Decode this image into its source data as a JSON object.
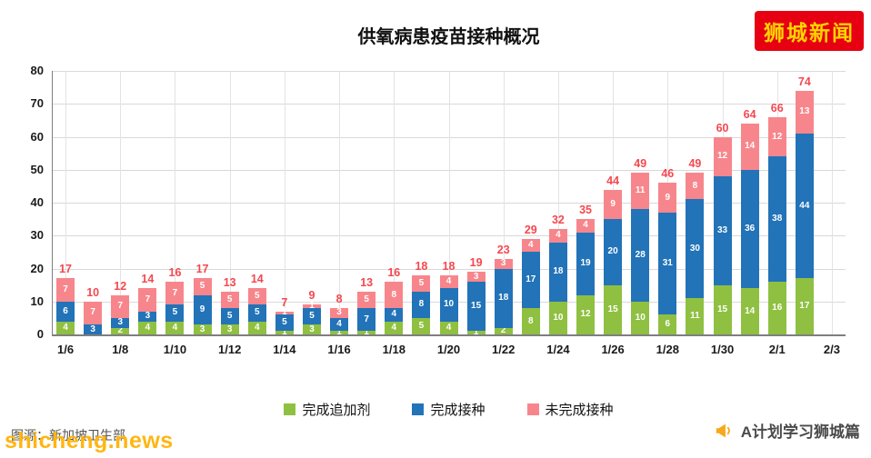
{
  "page": {
    "logo_text": "狮城新闻",
    "watermark_text": "shicheng.news",
    "source_caption": "图源：新加坡卫生部",
    "credit_text": "A计划学习狮城篇"
  },
  "colors": {
    "booster_green": "#8fc041",
    "fully_vaccinated_blue": "#2273b8",
    "not_fully_vaccinated_pink": "#f7868c",
    "total_label_red": "#f4484f",
    "gridline": "#d9d9d9",
    "gridline_vertical": "#e3e3e3",
    "axis": "#7f7f7f",
    "logo_bg_red": "#e60012",
    "logo_text_yellow": "#ffd500",
    "watermark_yellow": "#ffb612",
    "credit_icon_orange": "#f7a81b"
  },
  "chart_data": {
    "type": "bar",
    "stacked": true,
    "title": "供氧病患疫苗接种概况",
    "xlabel": "",
    "ylabel": "",
    "ylim": [
      0,
      80
    ],
    "yticks": [
      0,
      10,
      20,
      30,
      40,
      50,
      60,
      70,
      80
    ],
    "grid": true,
    "legend_position": "bottom",
    "categories": [
      "1/6",
      "1/7",
      "1/8",
      "1/9",
      "1/10",
      "1/11",
      "1/12",
      "1/13",
      "1/14",
      "1/15",
      "1/16",
      "1/17",
      "1/18",
      "1/19",
      "1/20",
      "1/21",
      "1/22",
      "1/23",
      "1/24",
      "1/25",
      "1/26",
      "1/27",
      "1/28",
      "1/29",
      "1/30",
      "1/31",
      "2/1",
      "2/2"
    ],
    "x_axis_tick_labels": [
      "1/6",
      "1/8",
      "1/10",
      "1/12",
      "1/14",
      "1/16",
      "1/18",
      "1/20",
      "1/22",
      "1/24",
      "1/26",
      "1/28",
      "1/30",
      "2/1",
      "2/3"
    ],
    "series": [
      {
        "key": "booster",
        "name": "完成追加剂",
        "color": "#8fc041",
        "values": [
          4,
          0,
          2,
          4,
          4,
          3,
          3,
          4,
          1,
          3,
          1,
          1,
          4,
          5,
          4,
          1,
          2,
          8,
          10,
          12,
          15,
          10,
          6,
          11,
          15,
          14,
          16,
          17
        ]
      },
      {
        "key": "fully-vaccinated",
        "name": "完成接种",
        "color": "#2273b8",
        "values": [
          6,
          3,
          3,
          3,
          5,
          9,
          5,
          5,
          5,
          5,
          4,
          7,
          4,
          8,
          10,
          15,
          18,
          17,
          18,
          19,
          20,
          28,
          31,
          30,
          33,
          36,
          38,
          44
        ]
      },
      {
        "key": "not-fully-vaccinated",
        "name": "未完成接种",
        "color": "#f7868c",
        "values": [
          7,
          7,
          7,
          7,
          7,
          5,
          5,
          5,
          1,
          1,
          3,
          5,
          8,
          5,
          4,
          3,
          3,
          4,
          4,
          4,
          9,
          11,
          9,
          8,
          12,
          14,
          12,
          13
        ]
      }
    ],
    "totals": [
      17,
      10,
      12,
      14,
      16,
      17,
      13,
      14,
      7,
      9,
      8,
      13,
      16,
      18,
      18,
      19,
      23,
      29,
      32,
      35,
      44,
      49,
      46,
      49,
      60,
      64,
      66,
      74
    ]
  }
}
